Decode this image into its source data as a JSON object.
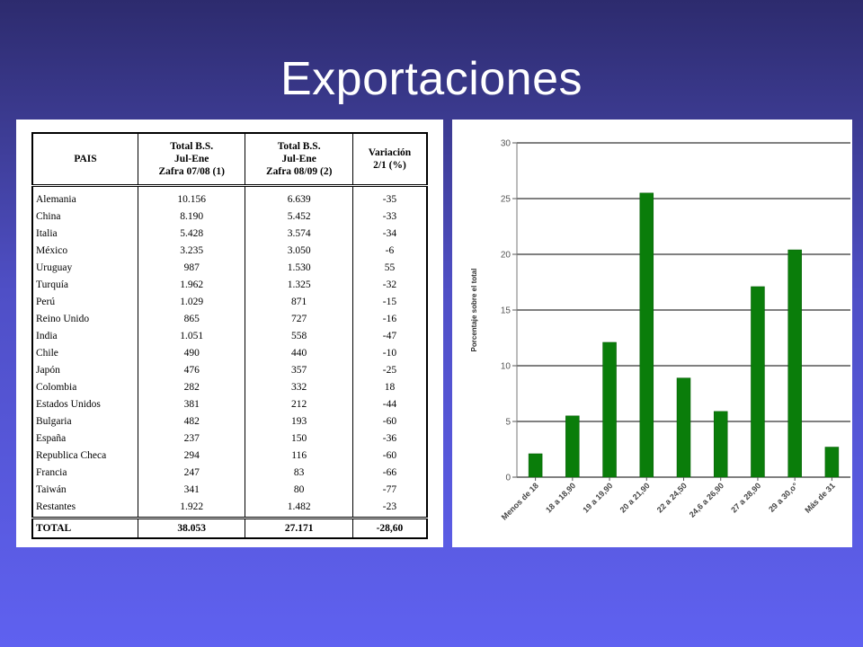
{
  "slide": {
    "title": "Exportaciones"
  },
  "table": {
    "headers": [
      [
        "PAIS"
      ],
      [
        "Total B.S.",
        "Jul-Ene",
        "Zafra 07/08 (1)"
      ],
      [
        "Total B.S.",
        "Jul-Ene",
        "Zafra 08/09 (2)"
      ],
      [
        "Variación",
        "2/1 (%)"
      ]
    ],
    "rows": [
      [
        "Alemania",
        "10.156",
        "6.639",
        "-35"
      ],
      [
        "China",
        "8.190",
        "5.452",
        "-33"
      ],
      [
        "Italia",
        "5.428",
        "3.574",
        "-34"
      ],
      [
        "México",
        "3.235",
        "3.050",
        "-6"
      ],
      [
        "Uruguay",
        "987",
        "1.530",
        "55"
      ],
      [
        "Turquía",
        "1.962",
        "1.325",
        "-32"
      ],
      [
        "Perú",
        "1.029",
        "871",
        "-15"
      ],
      [
        "Reino Unido",
        "865",
        "727",
        "-16"
      ],
      [
        "India",
        "1.051",
        "558",
        "-47"
      ],
      [
        "Chile",
        "490",
        "440",
        "-10"
      ],
      [
        "Japón",
        "476",
        "357",
        "-25"
      ],
      [
        "Colombia",
        "282",
        "332",
        "18"
      ],
      [
        "Estados Unidos",
        "381",
        "212",
        "-44"
      ],
      [
        "Bulgaria",
        "482",
        "193",
        "-60"
      ],
      [
        "España",
        "237",
        "150",
        "-36"
      ],
      [
        "Republica Checa",
        "294",
        "116",
        "-60"
      ],
      [
        "Francia",
        "247",
        "83",
        "-66"
      ],
      [
        "Taiwán",
        "341",
        "80",
        "-77"
      ],
      [
        "Restantes",
        "1.922",
        "1.482",
        "-23"
      ]
    ],
    "total": [
      "TOTAL",
      "38.053",
      "27.171",
      "-28,60"
    ]
  },
  "chart_data": {
    "type": "bar",
    "categories": [
      "Menos de 18",
      "18 a 18,90",
      "19 a 19,90",
      "20 a 21,90",
      "22 a 24,50",
      "24,6 a 26,90",
      "27 a 28,90",
      "29 a 30,o°",
      "Más de 31"
    ],
    "values": [
      2.1,
      5.5,
      12.1,
      25.5,
      8.9,
      5.9,
      17.1,
      20.4,
      2.7
    ],
    "yticks": [
      0,
      5,
      10,
      15,
      20,
      25,
      30
    ],
    "ylim": [
      0,
      30
    ],
    "ylabel": "Porcentaje sobre el total",
    "xlabel": "",
    "title": "",
    "grid": true,
    "bar_color": "#0a7d0a"
  }
}
